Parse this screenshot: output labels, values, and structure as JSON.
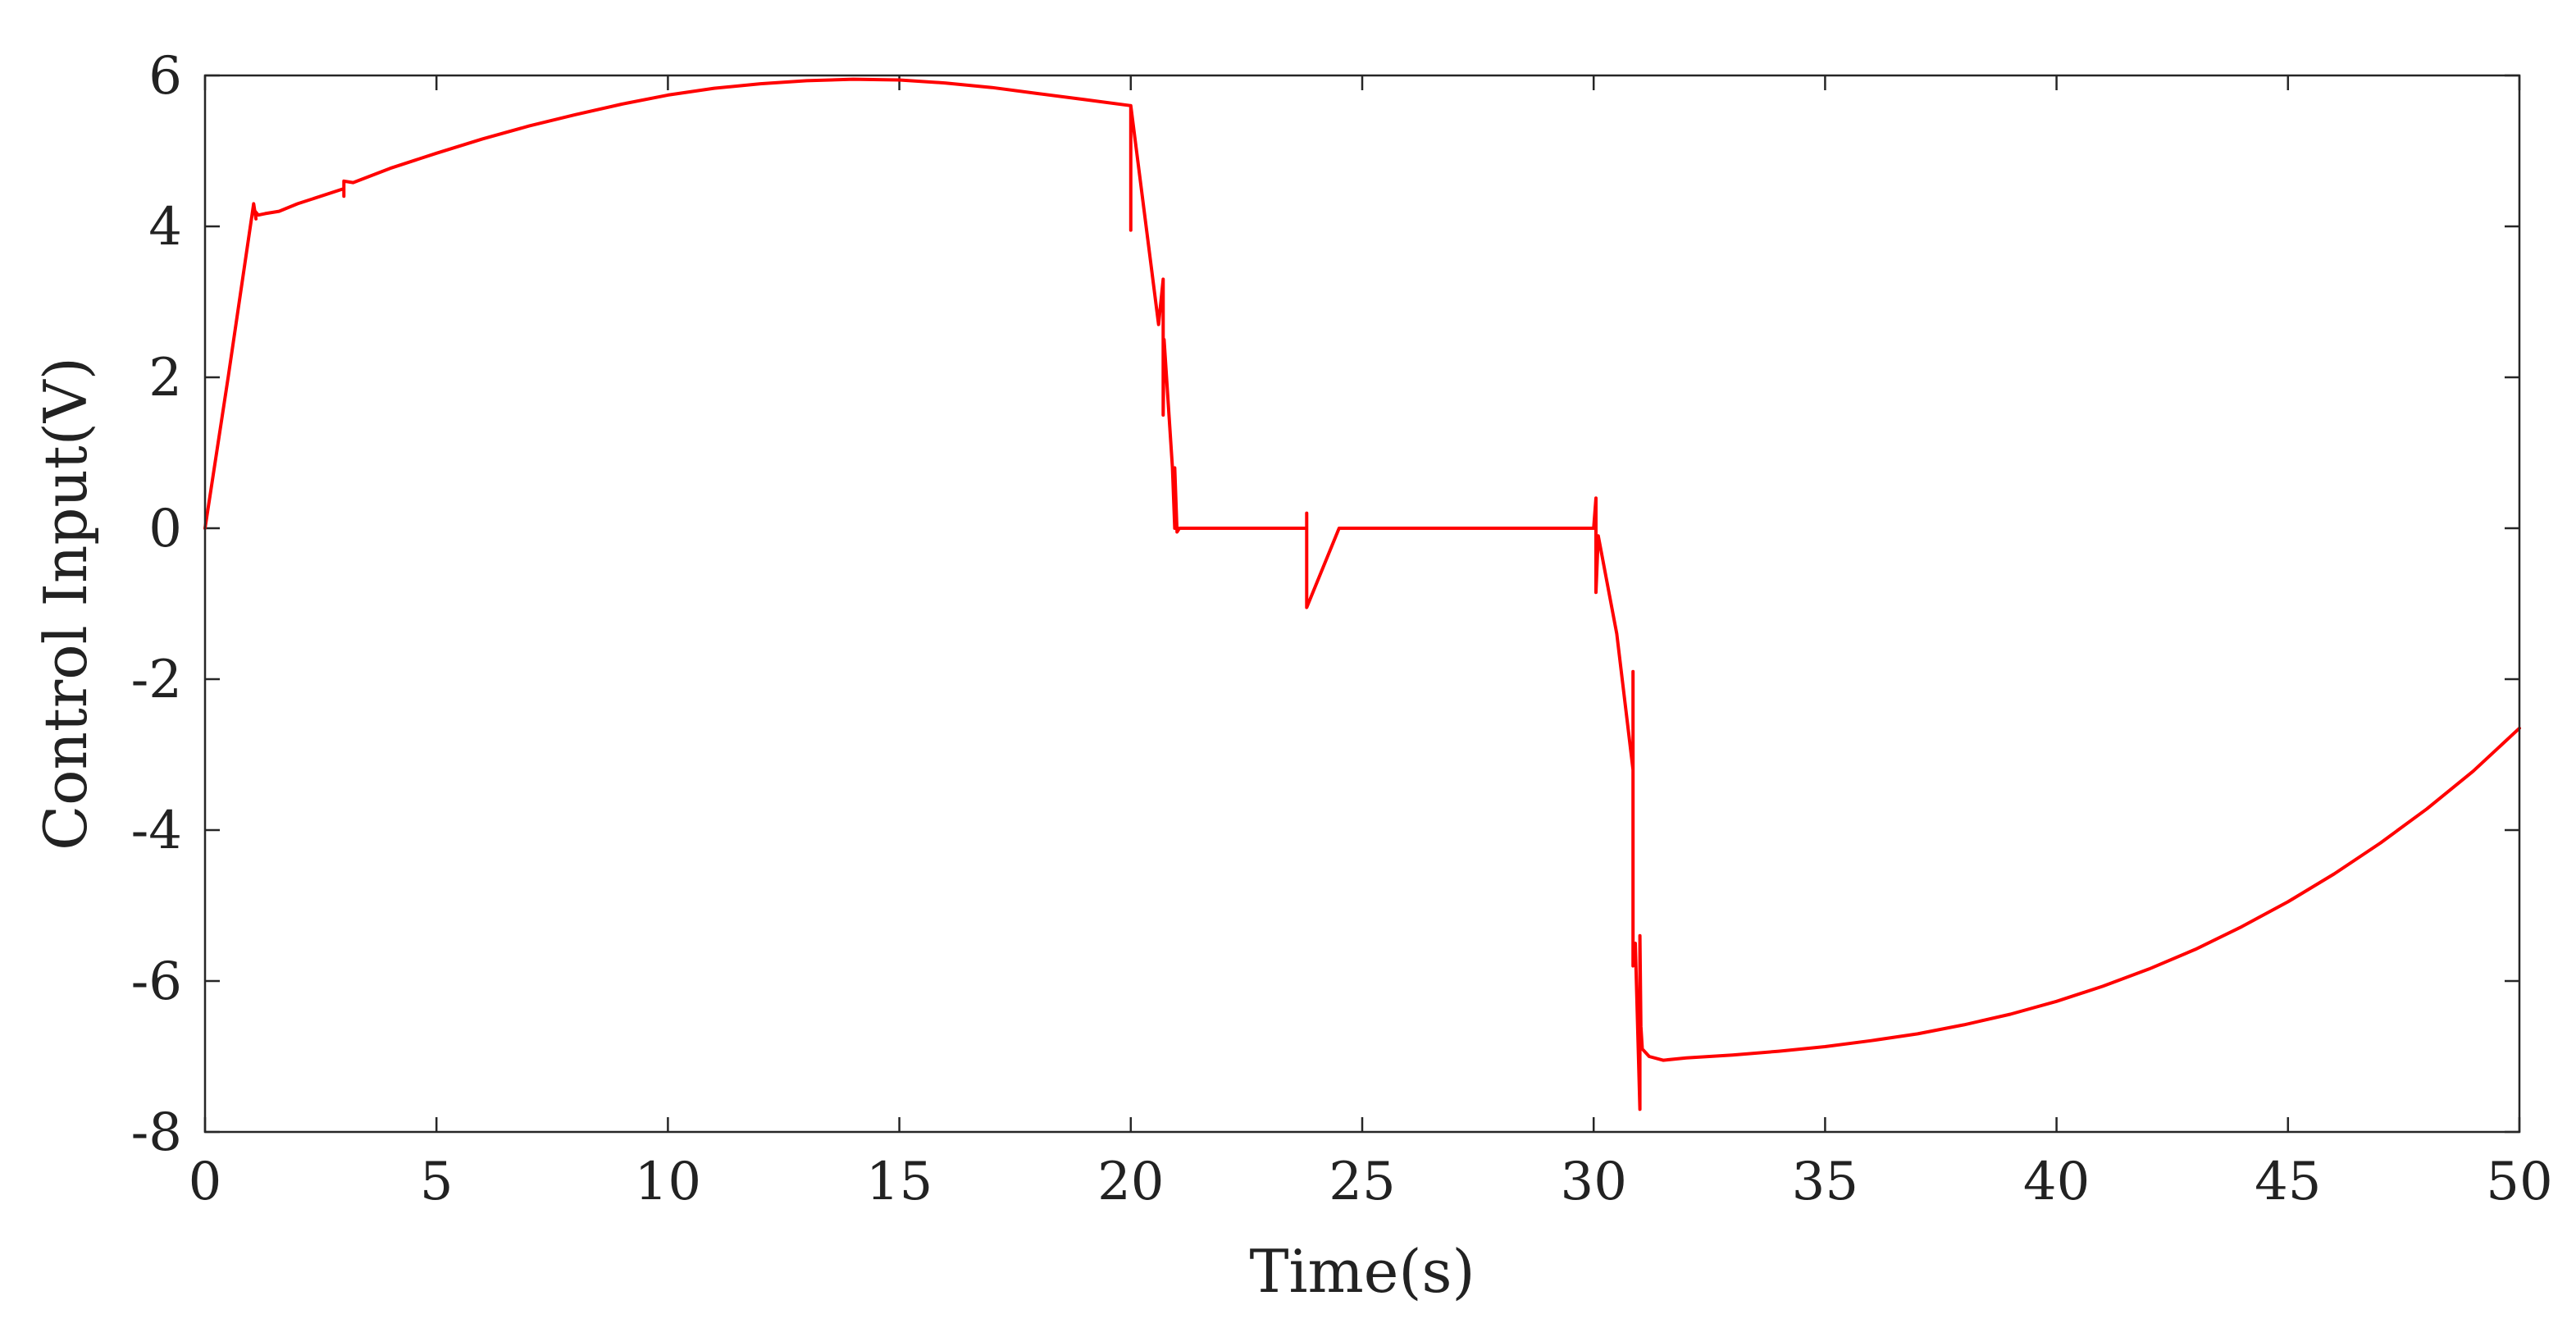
{
  "chart_data": {
    "type": "line",
    "title": "",
    "xlabel": "Time(s)",
    "ylabel": "Control Input(V)",
    "xlim": [
      0,
      50
    ],
    "ylim": [
      -8,
      6
    ],
    "xticks": [
      0,
      5,
      10,
      15,
      20,
      25,
      30,
      35,
      40,
      45,
      50
    ],
    "yticks": [
      6,
      4,
      2,
      0,
      -2,
      -4,
      -6,
      -8
    ],
    "xtick_labels": [
      "0",
      "5",
      "10",
      "15",
      "20",
      "25",
      "30",
      "35",
      "40",
      "45",
      "50"
    ],
    "ytick_labels": [
      "6",
      "4",
      "2",
      "0",
      "-2",
      "-4",
      "-6",
      "-8"
    ],
    "grid": false,
    "legend": false,
    "series": [
      {
        "color": "#ff0000",
        "x": [
          0,
          0.5,
          1.05,
          1.1,
          1.08,
          1.15,
          1.3,
          1.6,
          2.0,
          3.0,
          3.0,
          3.0,
          3.2,
          4.0,
          5.0,
          6.0,
          7.0,
          8.0,
          9.0,
          10.0,
          11.0,
          12.0,
          13.0,
          14.0,
          15.0,
          16.0,
          17.0,
          18.0,
          19.0,
          20.0,
          20.0,
          20.0,
          20.6,
          20.7,
          20.7,
          20.72,
          20.9,
          20.95,
          20.95,
          21.0,
          21.05,
          22.0,
          23.0,
          23.8,
          23.8,
          23.8,
          24.5,
          26.0,
          28.0,
          30.0,
          30.05,
          30.05,
          30.1,
          30.5,
          30.85,
          30.85,
          30.85,
          30.9,
          31.0,
          31.0,
          31.02,
          31.05,
          31.2,
          31.5,
          32.0,
          33.0,
          34.0,
          35.0,
          36.0,
          37.0,
          38.0,
          39.0,
          40.0,
          41.0,
          42.0,
          43.0,
          44.0,
          45.0,
          46.0,
          47.0,
          48.0,
          49.0,
          50.0
        ],
        "y": [
          0.0,
          2.0,
          4.3,
          4.1,
          4.2,
          4.15,
          4.17,
          4.2,
          4.3,
          4.5,
          4.4,
          4.6,
          4.58,
          4.77,
          4.97,
          5.16,
          5.33,
          5.48,
          5.62,
          5.74,
          5.83,
          5.89,
          5.93,
          5.95,
          5.94,
          5.9,
          5.84,
          5.76,
          5.68,
          5.6,
          3.95,
          5.6,
          2.7,
          3.3,
          1.5,
          2.5,
          0.8,
          0.0,
          0.8,
          -0.05,
          0.0,
          0.0,
          0.0,
          0.0,
          0.2,
          -1.05,
          0.0,
          0.0,
          0.0,
          0.0,
          0.4,
          -0.85,
          -0.1,
          -1.4,
          -3.2,
          -1.9,
          -5.8,
          -5.5,
          -7.7,
          -5.4,
          -6.6,
          -6.9,
          -7.0,
          -7.05,
          -7.02,
          -6.98,
          -6.93,
          -6.87,
          -6.79,
          -6.7,
          -6.58,
          -6.44,
          -6.27,
          -6.07,
          -5.84,
          -5.58,
          -5.28,
          -4.95,
          -4.58,
          -4.17,
          -3.72,
          -3.22,
          -2.65
        ]
      }
    ]
  }
}
